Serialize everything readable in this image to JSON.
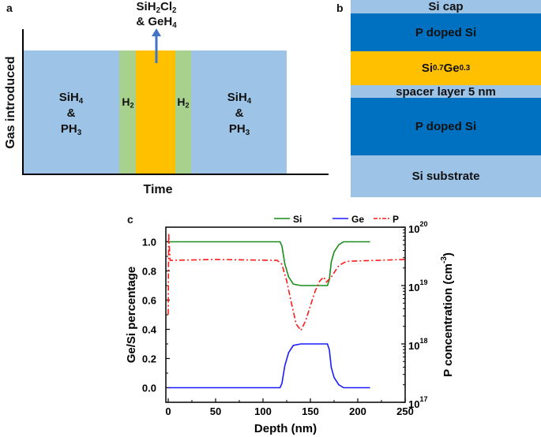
{
  "panel_a": {
    "panel_label": "a",
    "y_axis_label": "Gas introduced",
    "x_axis_label": "Time",
    "arrow_label_line1": "SiH2Cl2",
    "arrow_label_line2": "& GeH4",
    "left_block": [
      "SiH4",
      "&",
      "PH3"
    ],
    "h2_left": "H2",
    "h2_right": "H2",
    "right_block": [
      "SiH4",
      "&",
      "PH3"
    ],
    "colors": {
      "sih4_ph3": "#9dc3e6",
      "h2": "#a9d18e",
      "sigec": "#ffc000",
      "arrow": "#4472c4"
    }
  },
  "panel_b": {
    "panel_label": "b",
    "layers": [
      {
        "label": "Si cap",
        "color": "#9dc3e6"
      },
      {
        "label": "P doped Si",
        "color": "#0070c0"
      },
      {
        "label": "Si0.7Ge0.3",
        "color": "#ffc000"
      },
      {
        "label": "spacer layer 5 nm",
        "color": "#9dc3e6"
      },
      {
        "label": "P doped Si",
        "color": "#0070c0"
      },
      {
        "label": "Si substrate",
        "color": "#9dc3e6"
      }
    ]
  },
  "panel_c": {
    "panel_label": "c"
  },
  "chart_data": {
    "type": "line",
    "xlabel": "Depth (nm)",
    "ylabel": "Ge/Si percentage",
    "y2label": "P concentration (cm-3)",
    "xlim": [
      -2.5,
      250
    ],
    "ylim": [
      -0.1,
      1.1
    ],
    "y2lim": [
      1e+17,
      1e+20
    ],
    "y2scale": "log",
    "xticks": [
      "0",
      "50",
      "100",
      "150",
      "200",
      "250"
    ],
    "yticks": [
      "0.0",
      "0.2",
      "0.4",
      "0.6",
      "0.8",
      "1.0"
    ],
    "y2ticks": [
      {
        "base": "10",
        "exp": "17"
      },
      {
        "base": "10",
        "exp": "18"
      },
      {
        "base": "10",
        "exp": "19"
      },
      {
        "base": "10",
        "exp": "20"
      }
    ],
    "legend_position": "top-right",
    "series": [
      {
        "name": "Si",
        "axis": "left",
        "color": "#1a8c1a",
        "style": "solid",
        "x": [
          0,
          118,
          120,
          123,
          127,
          132,
          140,
          150,
          160,
          168,
          170,
          172,
          175,
          180,
          185,
          190,
          213
        ],
        "y": [
          1.0,
          1.0,
          0.97,
          0.85,
          0.76,
          0.71,
          0.7,
          0.7,
          0.7,
          0.7,
          0.74,
          0.86,
          0.93,
          0.98,
          1.0,
          1.0,
          1.0
        ]
      },
      {
        "name": "Ge",
        "axis": "left",
        "color": "#1a1aff",
        "style": "solid",
        "x": [
          0,
          118,
          120,
          123,
          127,
          132,
          140,
          150,
          160,
          168,
          170,
          172,
          175,
          180,
          185,
          190,
          213
        ],
        "y": [
          0.0,
          0.0,
          0.03,
          0.15,
          0.24,
          0.29,
          0.3,
          0.3,
          0.3,
          0.3,
          0.26,
          0.14,
          0.07,
          0.02,
          0.0,
          0.0,
          0.0
        ]
      },
      {
        "name": "P",
        "axis": "right",
        "color": "#ff1a1a",
        "style": "dash-dot",
        "x": [
          0,
          0.5,
          1,
          2,
          50,
          115,
          120,
          125,
          130,
          135,
          140,
          145,
          150,
          155,
          160,
          164,
          167,
          172,
          180,
          188,
          250
        ],
        "y": [
          3.2e+18,
          8e+19,
          5e+19,
          2.7e+19,
          2.8e+19,
          2.7e+19,
          2.3e+19,
          1.2e+19,
          5e+18,
          2.2e+18,
          1.7e+18,
          2.5e+18,
          4.5e+18,
          8e+18,
          1.2e+19,
          1.4e+19,
          1.15e+19,
          1.4e+19,
          2.2e+19,
          2.6e+19,
          2.8e+19
        ]
      }
    ]
  }
}
